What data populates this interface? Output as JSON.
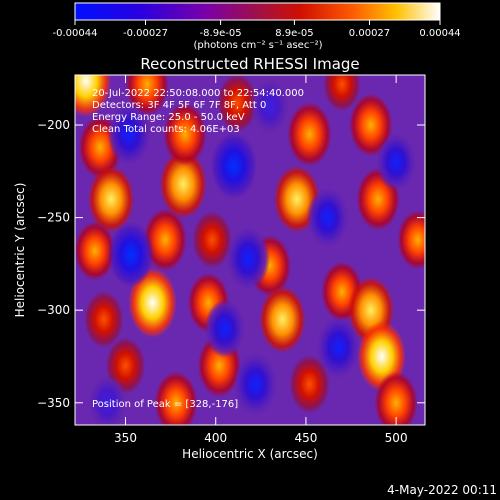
{
  "chart_data": {
    "type": "heatmap",
    "title": "Reconstructed RHESSI Image",
    "xlabel": "Heliocentric X (arcsec)",
    "ylabel": "Heliocentric Y (arcsec)",
    "xlim": [
      322,
      516
    ],
    "ylim": [
      -362,
      -173
    ],
    "xticks": [
      350,
      400,
      450,
      500
    ],
    "yticks": [
      -200,
      -250,
      -300,
      -350
    ],
    "colorbar": {
      "range": [
        -0.00044,
        0.00044
      ],
      "tick_values": [
        -0.00044,
        -0.00027,
        -8.9e-05,
        8.9e-05,
        0.00027,
        0.00044
      ],
      "tick_labels": [
        "-0.00044",
        "-0.00027",
        "-8.9e-05",
        "8.9e-05",
        "0.00027",
        "0.00044"
      ],
      "label": "(photons cm⁻² s⁻¹ asec⁻²)"
    },
    "annotations": {
      "time": "20-Jul-2022 22:50:08.000 to 22:54:40.000",
      "detectors": "Detectors: 3F 4F 5F 6F 7F 8F, Att 0",
      "energy": "Energy Range: 25.0 - 50.0 keV",
      "algorithm": "Clean    Total counts: 4.06E+03",
      "peak": "Position of Peak = [328,-176]"
    },
    "sources": [
      {
        "x": 328,
        "y": -176,
        "value": 0.00044
      },
      {
        "x": 362,
        "y": -178,
        "value": 0.0003
      },
      {
        "x": 336,
        "y": -212,
        "value": 0.0003
      },
      {
        "x": 342,
        "y": -240,
        "value": 0.00036
      },
      {
        "x": 333,
        "y": -268,
        "value": 0.00025
      },
      {
        "x": 338,
        "y": -305,
        "value": 0.00022
      },
      {
        "x": 350,
        "y": -330,
        "value": 0.00022
      },
      {
        "x": 365,
        "y": -296,
        "value": 0.0004
      },
      {
        "x": 372,
        "y": -262,
        "value": 0.0003
      },
      {
        "x": 382,
        "y": -232,
        "value": 0.00038
      },
      {
        "x": 383,
        "y": -205,
        "value": 0.0003
      },
      {
        "x": 378,
        "y": -350,
        "value": 0.0003
      },
      {
        "x": 396,
        "y": -296,
        "value": 0.00026
      },
      {
        "x": 402,
        "y": -330,
        "value": 0.0003
      },
      {
        "x": 398,
        "y": -262,
        "value": 0.00022
      },
      {
        "x": 412,
        "y": -188,
        "value": 0.00024
      },
      {
        "x": 430,
        "y": -276,
        "value": 0.00028
      },
      {
        "x": 437,
        "y": -305,
        "value": 0.00036
      },
      {
        "x": 445,
        "y": -240,
        "value": 0.00036
      },
      {
        "x": 452,
        "y": -205,
        "value": 0.00032
      },
      {
        "x": 452,
        "y": -340,
        "value": 0.00024
      },
      {
        "x": 470,
        "y": -290,
        "value": 0.00026
      },
      {
        "x": 470,
        "y": -178,
        "value": 0.00018
      },
      {
        "x": 486,
        "y": -200,
        "value": 0.0003
      },
      {
        "x": 490,
        "y": -240,
        "value": 0.0003
      },
      {
        "x": 486,
        "y": -300,
        "value": 0.00036
      },
      {
        "x": 492,
        "y": -325,
        "value": 0.0004
      },
      {
        "x": 500,
        "y": -350,
        "value": 0.0003
      },
      {
        "x": 512,
        "y": -262,
        "value": 0.00025
      },
      {
        "x": 352,
        "y": -205,
        "value": -0.0003
      },
      {
        "x": 353,
        "y": -270,
        "value": -0.00034
      },
      {
        "x": 410,
        "y": -222,
        "value": -0.00036
      },
      {
        "x": 418,
        "y": -272,
        "value": -0.0003
      },
      {
        "x": 422,
        "y": -340,
        "value": -0.0003
      },
      {
        "x": 462,
        "y": -250,
        "value": -0.00026
      },
      {
        "x": 468,
        "y": -320,
        "value": -0.0003
      },
      {
        "x": 405,
        "y": -310,
        "value": -0.00024
      },
      {
        "x": 340,
        "y": -350,
        "value": -0.0002
      },
      {
        "x": 500,
        "y": -220,
        "value": -0.00022
      },
      {
        "x": 430,
        "y": -190,
        "value": -0.0002
      }
    ]
  },
  "footer": {
    "timestamp": "4-May-2022 00:11"
  }
}
